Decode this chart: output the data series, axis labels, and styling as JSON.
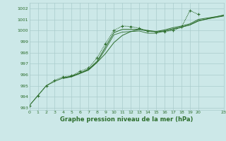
{
  "background_color": "#cce8e8",
  "grid_color": "#aacccc",
  "line_color": "#2d6e2d",
  "title": "Graphe pression niveau de la mer (hPa)",
  "xlim": [
    0,
    23
  ],
  "ylim": [
    992.8,
    1002.5
  ],
  "yticks": [
    993,
    994,
    995,
    996,
    997,
    998,
    999,
    1000,
    1001,
    1002
  ],
  "xticks": [
    0,
    1,
    2,
    3,
    4,
    5,
    6,
    7,
    8,
    9,
    10,
    11,
    12,
    13,
    14,
    15,
    16,
    17,
    18,
    19,
    20,
    23
  ],
  "xtick_labels": [
    "0",
    "1",
    "2",
    "3",
    "4",
    "5",
    "6",
    "7",
    "8",
    "9",
    "10",
    "11",
    "12",
    "13",
    "14",
    "15",
    "16",
    "17",
    "18",
    "19",
    "20",
    "23"
  ],
  "series1_x": [
    0,
    1,
    2,
    3,
    4,
    5,
    6,
    7,
    8,
    9,
    10,
    11,
    12,
    13,
    14,
    15,
    16,
    17,
    18,
    19,
    20
  ],
  "series1_y": [
    993.2,
    994.1,
    995.0,
    995.5,
    995.8,
    995.9,
    996.3,
    996.6,
    997.5,
    998.8,
    1000.0,
    1000.4,
    1000.35,
    1000.2,
    999.95,
    999.85,
    999.9,
    1000.0,
    1000.3,
    1001.8,
    1001.45
  ],
  "series2_x": [
    0,
    1,
    2,
    3,
    4,
    5,
    6,
    7,
    8,
    9,
    10,
    11,
    12,
    13,
    14,
    15,
    16,
    17,
    18,
    19,
    20,
    23
  ],
  "series2_y": [
    993.2,
    994.1,
    995.0,
    995.4,
    995.7,
    995.85,
    996.15,
    996.45,
    997.1,
    997.9,
    998.9,
    999.55,
    999.9,
    1000.1,
    1000.0,
    999.9,
    999.95,
    1000.1,
    1000.3,
    1000.5,
    1000.85,
    1001.4
  ],
  "series3_x": [
    4,
    5,
    6,
    7,
    8,
    9,
    10,
    11,
    12,
    13,
    14,
    15,
    16,
    17,
    18,
    19,
    20,
    23
  ],
  "series3_y": [
    995.7,
    995.85,
    996.15,
    996.5,
    997.2,
    998.5,
    999.8,
    1000.1,
    1000.1,
    1000.1,
    999.95,
    999.9,
    1000.05,
    1000.25,
    1000.4,
    1000.6,
    1001.0,
    1001.35
  ],
  "series4_x": [
    4,
    5,
    6,
    7,
    8,
    9,
    10,
    11,
    12,
    13,
    14,
    15,
    16,
    17,
    18,
    19,
    20,
    23
  ],
  "series4_y": [
    995.65,
    995.8,
    996.1,
    996.4,
    997.1,
    998.3,
    999.6,
    999.85,
    999.9,
    999.95,
    999.75,
    999.75,
    999.95,
    1000.15,
    1000.3,
    1000.5,
    1000.9,
    1001.3
  ]
}
